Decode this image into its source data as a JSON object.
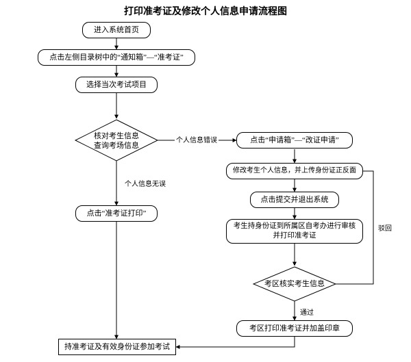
{
  "title": "打印准考证及修改个人信息申请流程图",
  "nodes": {
    "start": {
      "label": "进入系统首页"
    },
    "nav": {
      "label": "点击左侧目录树中的“通知箱”—“准考证”"
    },
    "select": {
      "label": "选择当次考试项目"
    },
    "verify": {
      "label": "核对考生信息\n查询考场信息"
    },
    "print": {
      "label": "点击“准考证打印”"
    },
    "apply": {
      "label": "点击“申请箱”—“改证申请”"
    },
    "modify": {
      "label": "修改考生个人信息，并上传身份证正反面"
    },
    "submit": {
      "label": "点击提交并退出系统"
    },
    "goto_office": {
      "label": "考生持身份证到所属区自考办进行审核并打印准考证"
    },
    "district": {
      "label": "考区核实考生信息"
    },
    "stamp": {
      "label": "考区打印准考证并加盖印章"
    },
    "end": {
      "label": "持准考证及有效身份证参加考试"
    }
  },
  "edges": {
    "info_error": "个人信息错误",
    "info_ok": "个人信息无误",
    "reject": "驳回",
    "pass": "通过"
  },
  "style": {
    "background": "#ffffff",
    "stroke": "#000000",
    "title_fontsize": 14,
    "node_fontsize": 11,
    "label_fontsize": 10
  }
}
